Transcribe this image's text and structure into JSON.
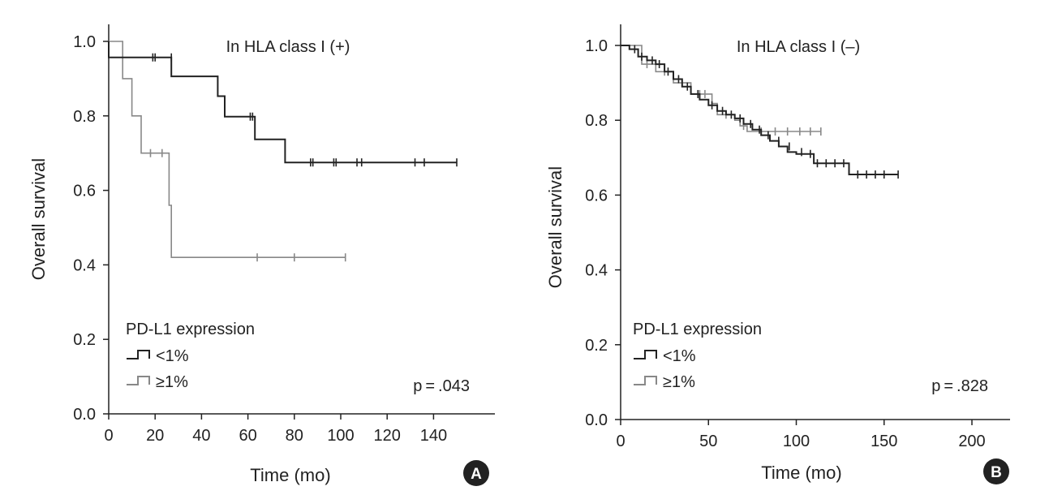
{
  "chart_data": [
    {
      "panel": "A",
      "type": "line",
      "step": true,
      "title": "In HLA class I (+)",
      "xlabel": "Time (mo)",
      "ylabel": "Overall survival",
      "xlim": [
        0,
        160
      ],
      "ylim": [
        0,
        1.05
      ],
      "xticks": [
        0,
        20,
        40,
        60,
        80,
        100,
        120,
        140
      ],
      "xtick_labels": [
        "0",
        "20",
        "40",
        "60",
        "80",
        "100",
        "120",
        "140"
      ],
      "yticks": [
        0,
        0.2,
        0.4,
        0.6,
        0.8,
        1.0
      ],
      "ytick_labels": [
        "0.0",
        "0.2",
        "0.4",
        "0.6",
        "0.8",
        "1.0"
      ],
      "legend_title": "PD-L1 expression",
      "pvalue": "p = .043",
      "series": [
        {
          "name": "<1%",
          "color": "#222222",
          "x": [
            0,
            0,
            27,
            27,
            47,
            47,
            50,
            50,
            63,
            63,
            76,
            76,
            150
          ],
          "y": [
            1.0,
            0.957,
            0.957,
            0.906,
            0.906,
            0.853,
            0.853,
            0.798,
            0.798,
            0.737,
            0.737,
            0.675,
            0.675
          ],
          "censor_x": [
            19,
            20,
            27,
            61,
            62,
            87,
            88,
            97,
            98,
            107,
            109,
            132,
            136,
            150
          ],
          "censor_y": [
            0.957,
            0.957,
            0.957,
            0.798,
            0.798,
            0.675,
            0.675,
            0.675,
            0.675,
            0.675,
            0.675,
            0.675,
            0.675,
            0.675
          ]
        },
        {
          "name": "≥1%",
          "color": "#888888",
          "x": [
            0,
            6,
            6,
            10,
            10,
            14,
            14,
            26,
            26,
            27,
            27,
            102
          ],
          "y": [
            1.0,
            1.0,
            0.9,
            0.9,
            0.8,
            0.8,
            0.7,
            0.7,
            0.56,
            0.56,
            0.42,
            0.42
          ],
          "censor_x": [
            18,
            23,
            64,
            80,
            102
          ],
          "censor_y": [
            0.7,
            0.7,
            0.42,
            0.42,
            0.42
          ]
        }
      ]
    },
    {
      "panel": "B",
      "type": "line",
      "step": true,
      "title": "In HLA class I (–)",
      "xlabel": "Time (mo)",
      "ylabel": "Overall survival",
      "xlim": [
        0,
        220
      ],
      "ylim": [
        0,
        1.04
      ],
      "xticks": [
        0,
        50,
        100,
        150,
        200
      ],
      "xtick_labels": [
        "0",
        "50",
        "100",
        "150",
        "200"
      ],
      "yticks": [
        0,
        0.2,
        0.4,
        0.6,
        0.8,
        1.0
      ],
      "ytick_labels": [
        "0.0",
        "0.2",
        "0.4",
        "0.6",
        "0.8",
        "1.0"
      ],
      "legend_title": "PD-L1 expression",
      "pvalue": "p = .828",
      "series": [
        {
          "name": "<1%",
          "color": "#222222",
          "x": [
            0,
            5,
            5,
            10,
            10,
            15,
            15,
            20,
            20,
            25,
            25,
            30,
            30,
            35,
            35,
            40,
            40,
            45,
            45,
            50,
            50,
            55,
            55,
            60,
            60,
            65,
            65,
            70,
            70,
            75,
            75,
            80,
            80,
            85,
            85,
            90,
            90,
            95,
            95,
            100,
            100,
            110,
            110,
            130,
            130,
            158
          ],
          "y": [
            1.0,
            1.0,
            0.99,
            0.99,
            0.97,
            0.97,
            0.96,
            0.96,
            0.95,
            0.95,
            0.93,
            0.93,
            0.91,
            0.91,
            0.89,
            0.89,
            0.87,
            0.87,
            0.855,
            0.855,
            0.84,
            0.84,
            0.825,
            0.825,
            0.815,
            0.815,
            0.805,
            0.805,
            0.79,
            0.79,
            0.775,
            0.775,
            0.76,
            0.76,
            0.745,
            0.745,
            0.73,
            0.73,
            0.715,
            0.715,
            0.71,
            0.71,
            0.685,
            0.685,
            0.655,
            0.655
          ],
          "censor_x": [
            8,
            12,
            18,
            22,
            27,
            33,
            38,
            44,
            52,
            58,
            63,
            68,
            74,
            79,
            84,
            90,
            96,
            103,
            108,
            112,
            117,
            122,
            127,
            135,
            140,
            145,
            150,
            158
          ],
          "censor_y": [
            0.99,
            0.97,
            0.96,
            0.95,
            0.93,
            0.91,
            0.89,
            0.87,
            0.84,
            0.825,
            0.815,
            0.805,
            0.79,
            0.775,
            0.76,
            0.745,
            0.73,
            0.715,
            0.71,
            0.685,
            0.685,
            0.685,
            0.685,
            0.655,
            0.655,
            0.655,
            0.655,
            0.655
          ]
        },
        {
          "name": "≥1%",
          "color": "#888888",
          "x": [
            0,
            12,
            12,
            20,
            20,
            30,
            30,
            40,
            40,
            52,
            52,
            55,
            55,
            65,
            65,
            68,
            68,
            72,
            72,
            114
          ],
          "y": [
            1.0,
            1.0,
            0.95,
            0.95,
            0.93,
            0.93,
            0.9,
            0.9,
            0.87,
            0.87,
            0.845,
            0.845,
            0.815,
            0.815,
            0.8,
            0.8,
            0.785,
            0.785,
            0.77,
            0.77
          ],
          "censor_x": [
            15,
            25,
            35,
            45,
            48,
            60,
            70,
            80,
            88,
            95,
            102,
            108,
            114
          ],
          "censor_y": [
            0.95,
            0.93,
            0.9,
            0.87,
            0.87,
            0.815,
            0.785,
            0.77,
            0.77,
            0.77,
            0.77,
            0.77,
            0.77
          ]
        }
      ]
    }
  ]
}
